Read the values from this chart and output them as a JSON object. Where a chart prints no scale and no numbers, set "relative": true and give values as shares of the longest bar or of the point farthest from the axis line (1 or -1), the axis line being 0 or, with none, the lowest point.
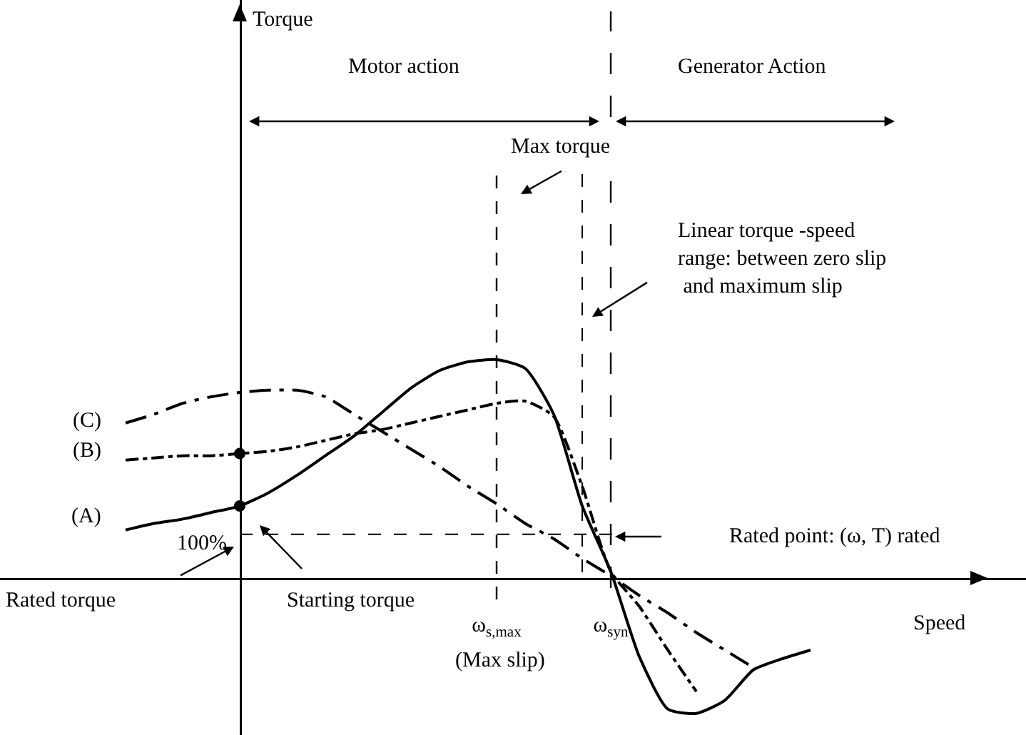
{
  "chart_data": {
    "type": "line",
    "relative": true,
    "xlabel": "Speed",
    "categories": [
      null,
      null,
      null,
      null,
      null,
      null,
      null,
      null,
      null,
      null,
      null,
      null,
      null,
      "ω$_{s,max}$",
      null,
      null,
      null,
      "ω$_{syn}$",
      null,
      null,
      null,
      null,
      null,
      null,
      null,
      null,
      null
    ],
    "series": [
      {
        "name": "(A)",
        "color": "#000000",
        "line_style": "solid",
        "values": [
          0.22,
          0.25,
          0.27,
          0.3,
          0.33,
          0.39,
          0.47,
          0.56,
          0.65,
          0.76,
          0.87,
          0.95,
          0.99,
          1,
          0.96,
          0.75,
          0.33,
          0.03,
          -0.36,
          -0.6,
          -0.62,
          -0.56,
          -0.42,
          -0.37,
          -0.33,
          null,
          null
        ]
      },
      {
        "name": "(B)",
        "color": "#000000",
        "line_style": "dashed",
        "values": [
          0.54,
          0.55,
          0.56,
          0.56,
          0.57,
          0.58,
          0.6,
          0.63,
          0.66,
          0.68,
          0.71,
          0.74,
          0.77,
          0.8,
          0.81,
          0.74,
          0.42,
          0.03,
          -0.13,
          -0.33,
          -0.52,
          null,
          null,
          null,
          null,
          null,
          null
        ]
      },
      {
        "name": "(C)",
        "color": "#000000",
        "line_style": "dashed",
        "values": [
          0.71,
          0.75,
          0.8,
          0.83,
          0.85,
          0.86,
          0.86,
          0.83,
          0.75,
          0.67,
          0.59,
          0.51,
          0.42,
          0.34,
          0.25,
          0.18,
          0.09,
          0.01,
          -0.08,
          -0.16,
          -0.25,
          -0.33,
          -0.41,
          null,
          null,
          null,
          null
        ]
      },
      {
        "type": "scatter",
        "color": "#000000",
        "marker": "circle",
        "values": [
          null,
          null,
          null,
          null,
          0.33,
          null,
          null,
          null,
          null,
          null,
          null,
          null,
          null,
          null,
          null,
          null,
          null,
          null,
          null,
          null,
          null,
          null,
          null,
          null,
          null,
          null,
          null
        ]
      },
      {
        "type": "scatter",
        "color": "#000000",
        "marker": "circle",
        "values": [
          null,
          null,
          null,
          null,
          0.57,
          null,
          null,
          null,
          null,
          null,
          null,
          null,
          null,
          null,
          null,
          null,
          null,
          null,
          null,
          null,
          null,
          null,
          null,
          null,
          null,
          null,
          null
        ]
      }
    ],
    "ref_lines": [
      {
        "axis": "y",
        "value": 0.2,
        "label": null,
        "line_style": "dashed"
      },
      {
        "axis": "x",
        "value": "ω$_{s,max}$",
        "label": null,
        "line_style": "dashed"
      },
      {
        "axis": "x",
        "value": "ω$_{syn}$",
        "label": null,
        "line_style": "dashed"
      }
    ],
    "annotations": [
      "Torque",
      "Motor action",
      "Generator Action",
      "Max torque",
      "Linear torque -speed\nrange: between zero slip\n and maximum slip",
      "Rated point: (ω, T) rated",
      "Rated torque",
      "Starting torque",
      "100%",
      "(Max slip)"
    ]
  }
}
